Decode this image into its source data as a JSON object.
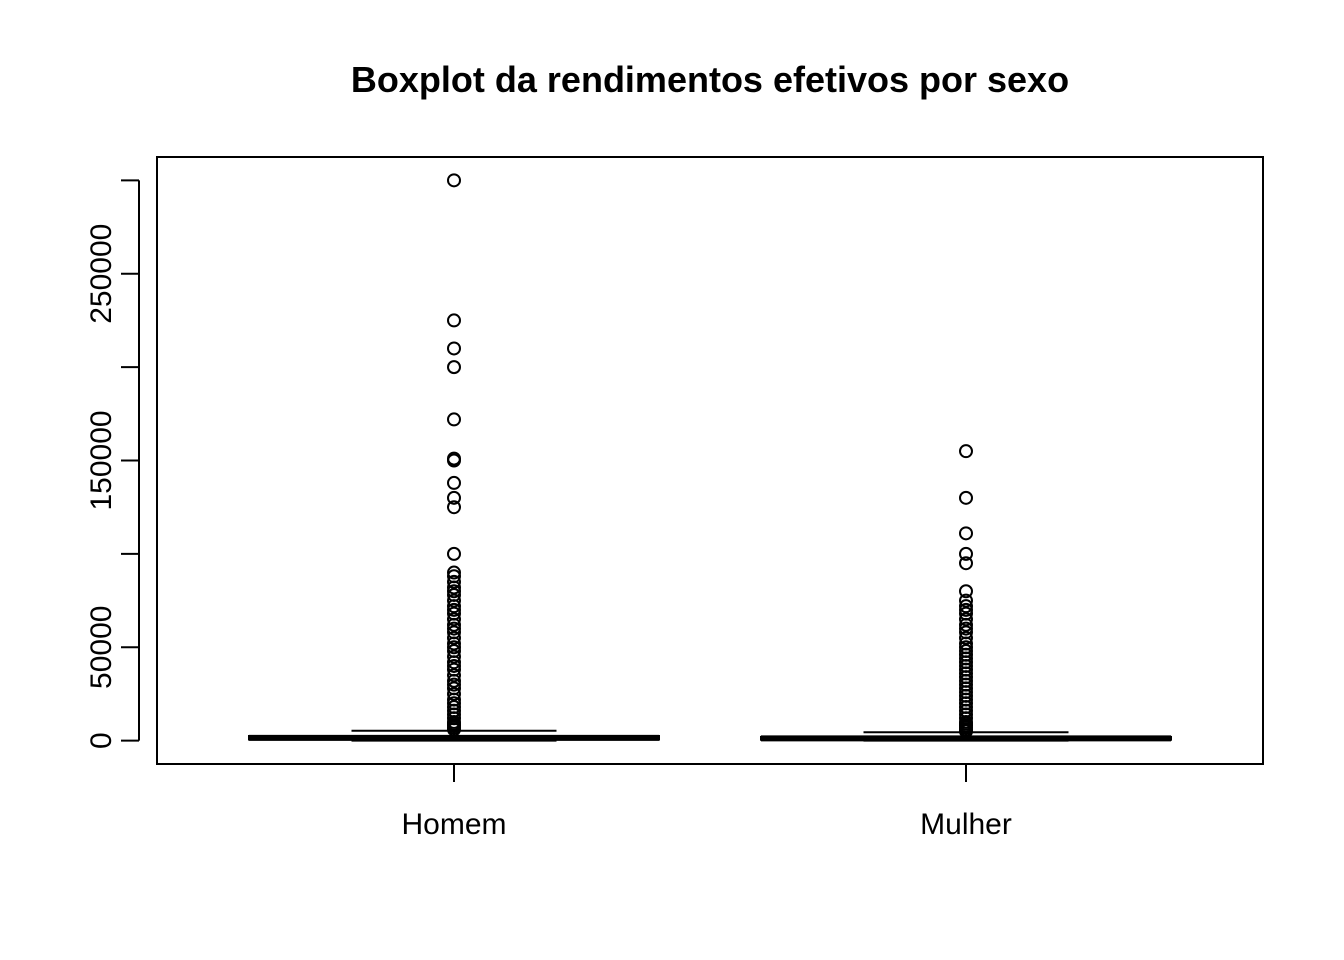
{
  "chart_data": {
    "type": "boxplot",
    "title": "Boxplot da rendimentos efetivos por sexo",
    "xlabel": "",
    "ylabel": "",
    "ylim": [
      -12500,
      312500
    ],
    "y_ticks": [
      0,
      50000,
      100000,
      150000,
      200000,
      250000,
      300000
    ],
    "y_tick_labels": [
      "0",
      "50000",
      "",
      "150000",
      "",
      "250000",
      ""
    ],
    "grid": false,
    "categories": [
      "Homem",
      "Mulher"
    ],
    "boxes": [
      {
        "name": "Homem",
        "min": 0,
        "q1": 600,
        "median": 1500,
        "q3": 2500,
        "max": 5300,
        "outliers": [
          300000,
          225000,
          210000,
          200000,
          172000,
          151000,
          150000,
          138000,
          130000,
          125000,
          100000,
          90000,
          88000,
          85000,
          82000,
          80000,
          78000,
          75000,
          72000,
          70000,
          68000,
          65000,
          62000,
          60000,
          58000,
          55000,
          52000,
          50000,
          48000,
          45000,
          42000,
          40000,
          38000,
          35000,
          32000,
          30000,
          28000,
          25000,
          22000,
          20000,
          18000,
          16000,
          14000,
          12000,
          10000,
          9000,
          8000,
          7000,
          6000
        ]
      },
      {
        "name": "Mulher",
        "min": 0,
        "q1": 500,
        "median": 1200,
        "q3": 2000,
        "max": 4500,
        "outliers": [
          155000,
          130000,
          111000,
          100000,
          95000,
          80000,
          75000,
          72000,
          70000,
          68000,
          65000,
          62000,
          60000,
          58000,
          55000,
          52000,
          50000,
          48000,
          46000,
          44000,
          42000,
          40000,
          38000,
          36000,
          34000,
          32000,
          30000,
          28000,
          26000,
          24000,
          22000,
          20000,
          18000,
          16000,
          14000,
          12000,
          10000,
          9000,
          8000,
          7000,
          6000,
          5000
        ]
      }
    ]
  }
}
